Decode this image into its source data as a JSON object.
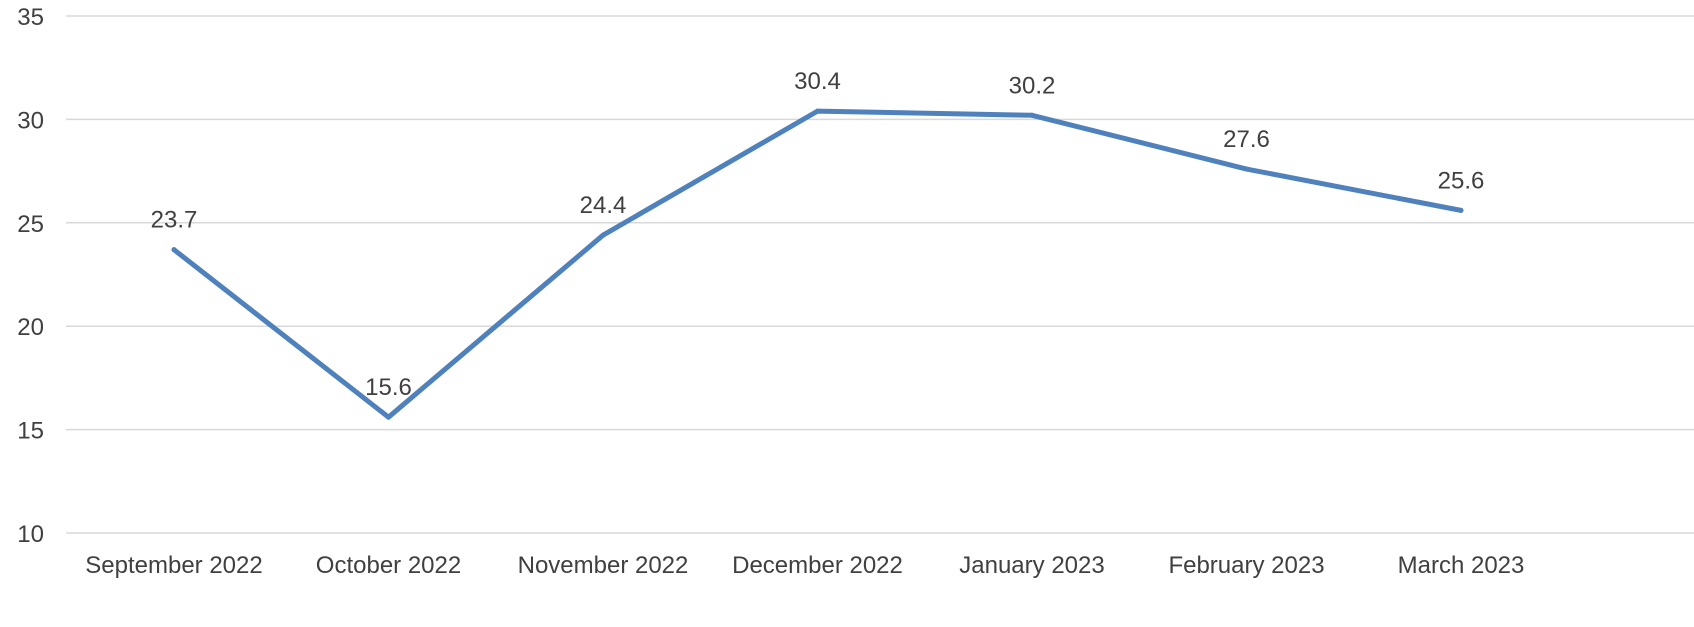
{
  "chart_data": {
    "type": "line",
    "categories": [
      "September 2022",
      "October 2022",
      "November 2022",
      "December 2022",
      "January 2023",
      "February 2023",
      "March 2023"
    ],
    "series": [
      {
        "values": [
          23.7,
          15.6,
          24.4,
          30.4,
          30.2,
          27.6,
          25.6
        ],
        "color": "#4f81bd"
      }
    ],
    "data_labels": [
      "23.7",
      "15.6",
      "24.4",
      "30.4",
      "30.2",
      "27.6",
      "25.6"
    ],
    "y_ticks": [
      "35",
      "30",
      "25",
      "20",
      "15",
      "10"
    ],
    "ylim": [
      10,
      35
    ],
    "grid": true,
    "legend": "none",
    "title": "",
    "xlabel": "",
    "ylabel": ""
  }
}
